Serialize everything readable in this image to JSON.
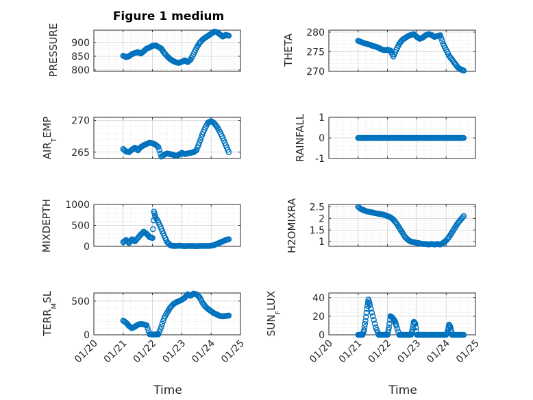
{
  "chart_data": [
    {
      "type": "scatter",
      "title": "Figure 1 medium",
      "ylabel": "PRESSURE",
      "ylim": [
        795,
        945
      ],
      "yticks": [
        800,
        850,
        900
      ],
      "ytick_labels": [
        "800",
        "850",
        "900"
      ],
      "xlim": [
        20,
        25
      ],
      "x": [
        21.0,
        21.1,
        21.2,
        21.3,
        21.4,
        21.5,
        21.6,
        21.7,
        21.8,
        21.9,
        22.0,
        22.1,
        22.2,
        22.3,
        22.4,
        22.5,
        22.6,
        22.7,
        22.8,
        22.9,
        23.0,
        23.1,
        23.2,
        23.3,
        23.4,
        23.5,
        23.6,
        23.7,
        23.8,
        23.9,
        24.0,
        24.1,
        24.2,
        24.3,
        24.4,
        24.5,
        24.6
      ],
      "y": [
        852,
        847,
        850,
        858,
        862,
        865,
        860,
        868,
        878,
        882,
        888,
        890,
        884,
        878,
        862,
        850,
        840,
        833,
        828,
        826,
        830,
        835,
        829,
        838,
        858,
        880,
        898,
        910,
        918,
        925,
        932,
        940,
        938,
        930,
        922,
        928,
        925
      ]
    },
    {
      "type": "scatter",
      "title": "",
      "ylabel": "THETA",
      "ylim": [
        270,
        280.5
      ],
      "yticks": [
        270,
        275,
        280
      ],
      "ytick_labels": [
        "270",
        "275",
        "280"
      ],
      "xlim": [
        20,
        25
      ],
      "x": [
        21.0,
        21.1,
        21.2,
        21.3,
        21.4,
        21.5,
        21.6,
        21.7,
        21.8,
        21.9,
        22.0,
        22.1,
        22.2,
        22.3,
        22.4,
        22.5,
        22.6,
        22.7,
        22.8,
        22.9,
        23.0,
        23.1,
        23.2,
        23.3,
        23.4,
        23.5,
        23.6,
        23.7,
        23.8,
        23.9,
        24.0,
        24.1,
        24.2,
        24.3,
        24.4,
        24.5,
        24.6
      ],
      "y": [
        277.8,
        277.5,
        277.2,
        277.0,
        276.8,
        276.5,
        276.3,
        276.0,
        275.6,
        275.4,
        275.5,
        275.3,
        273.8,
        275.5,
        277.0,
        278.0,
        278.5,
        279.0,
        279.3,
        279.5,
        278.8,
        278.3,
        278.6,
        279.2,
        279.5,
        279.3,
        278.8,
        279.0,
        279.2,
        277.0,
        275.5,
        274.0,
        273.0,
        272.0,
        271.0,
        270.5,
        270.2
      ]
    },
    {
      "type": "scatter",
      "title": "",
      "ylabel": "AIR_TEMP",
      "ylim": [
        264,
        270.5
      ],
      "yticks": [
        265,
        270
      ],
      "ytick_labels": [
        "265",
        "270"
      ],
      "xlim": [
        20,
        25
      ],
      "x": [
        21.0,
        21.1,
        21.2,
        21.3,
        21.4,
        21.5,
        21.6,
        21.7,
        21.8,
        21.9,
        22.0,
        22.1,
        22.2,
        22.3,
        22.4,
        22.5,
        22.6,
        22.7,
        22.8,
        22.9,
        23.0,
        23.1,
        23.2,
        23.3,
        23.4,
        23.5,
        23.6,
        23.7,
        23.8,
        23.9,
        24.0,
        24.1,
        24.2,
        24.3,
        24.4,
        24.5,
        24.6
      ],
      "y": [
        265.5,
        265.1,
        265.0,
        265.4,
        265.7,
        265.3,
        265.8,
        266.1,
        266.3,
        266.5,
        266.4,
        266.2,
        265.8,
        264.3,
        264.6,
        264.8,
        264.7,
        264.6,
        264.4,
        264.6,
        264.9,
        264.7,
        264.8,
        264.9,
        265.0,
        265.3,
        266.5,
        267.8,
        268.9,
        269.7,
        269.9,
        269.6,
        269.0,
        268.2,
        267.2,
        266.1,
        265.0
      ]
    },
    {
      "type": "scatter",
      "title": "",
      "ylabel": "RAINFALL",
      "ylim": [
        -1,
        1
      ],
      "yticks": [
        -1,
        0,
        1
      ],
      "ytick_labels": [
        "-1",
        "0",
        "1"
      ],
      "xlim": [
        20,
        25
      ],
      "x": [
        21.0,
        21.1,
        21.2,
        21.3,
        21.4,
        21.5,
        21.6,
        21.7,
        21.8,
        21.9,
        22.0,
        22.1,
        22.2,
        22.3,
        22.4,
        22.5,
        22.6,
        22.7,
        22.8,
        22.9,
        23.0,
        23.1,
        23.2,
        23.3,
        23.4,
        23.5,
        23.6,
        23.7,
        23.8,
        23.9,
        24.0,
        24.1,
        24.2,
        24.3,
        24.4,
        24.5,
        24.6
      ],
      "y": [
        0,
        0,
        0,
        0,
        0,
        0,
        0,
        0,
        0,
        0,
        0,
        0,
        0,
        0,
        0,
        0,
        0,
        0,
        0,
        0,
        0,
        0,
        0,
        0,
        0,
        0,
        0,
        0,
        0,
        0,
        0,
        0,
        0,
        0,
        0,
        0,
        0
      ]
    },
    {
      "type": "scatter",
      "title": "",
      "ylabel": "MIXDEPTH",
      "ylim": [
        0,
        1000
      ],
      "yticks": [
        0,
        500,
        1000
      ],
      "ytick_labels": [
        "0",
        "500",
        "1000"
      ],
      "xlim": [
        20,
        25
      ],
      "x": [
        21.0,
        21.1,
        21.2,
        21.3,
        21.4,
        21.5,
        21.6,
        21.7,
        21.8,
        21.9,
        22.0,
        22.05,
        22.1,
        22.2,
        22.3,
        22.4,
        22.5,
        22.6,
        22.7,
        22.8,
        22.9,
        23.0,
        23.1,
        23.2,
        23.3,
        23.4,
        23.5,
        23.6,
        23.7,
        23.8,
        23.9,
        24.0,
        24.1,
        24.2,
        24.3,
        24.4,
        24.5,
        24.6
      ],
      "y": [
        100,
        150,
        80,
        170,
        120,
        200,
        280,
        350,
        300,
        220,
        200,
        830,
        700,
        580,
        420,
        250,
        100,
        30,
        10,
        10,
        15,
        10,
        5,
        10,
        10,
        8,
        5,
        10,
        10,
        10,
        8,
        15,
        30,
        60,
        90,
        120,
        150,
        170
      ]
    },
    {
      "type": "scatter",
      "title": "",
      "ylabel": "H2OMIXRA",
      "ylim": [
        0.8,
        2.6
      ],
      "yticks": [
        1,
        1.5,
        2,
        2.5
      ],
      "ytick_labels": [
        "1",
        "1.5",
        "2",
        "2.5"
      ],
      "xlim": [
        20,
        25
      ],
      "x": [
        21.0,
        21.1,
        21.2,
        21.3,
        21.4,
        21.5,
        21.6,
        21.7,
        21.8,
        21.9,
        22.0,
        22.1,
        22.2,
        22.3,
        22.4,
        22.5,
        22.6,
        22.7,
        22.8,
        22.9,
        23.0,
        23.1,
        23.2,
        23.3,
        23.4,
        23.5,
        23.6,
        23.7,
        23.8,
        23.9,
        24.0,
        24.1,
        24.2,
        24.3,
        24.4,
        24.5,
        24.6
      ],
      "y": [
        2.5,
        2.4,
        2.35,
        2.3,
        2.28,
        2.25,
        2.22,
        2.2,
        2.18,
        2.15,
        2.1,
        2.05,
        1.95,
        1.8,
        1.6,
        1.4,
        1.2,
        1.08,
        1.0,
        0.98,
        0.95,
        0.93,
        0.9,
        0.9,
        0.88,
        0.9,
        0.88,
        0.9,
        0.88,
        0.95,
        1.05,
        1.2,
        1.4,
        1.6,
        1.8,
        1.95,
        2.1
      ]
    },
    {
      "type": "scatter",
      "title": "",
      "ylabel": "TERR_MSL",
      "ylim": [
        0,
        620
      ],
      "yticks": [
        0,
        500
      ],
      "ytick_labels": [
        "0",
        "500"
      ],
      "xlim": [
        20,
        25
      ],
      "x": [
        21.0,
        21.1,
        21.2,
        21.3,
        21.4,
        21.5,
        21.6,
        21.7,
        21.8,
        21.9,
        22.0,
        22.1,
        22.2,
        22.3,
        22.4,
        22.5,
        22.6,
        22.7,
        22.8,
        22.9,
        23.0,
        23.1,
        23.2,
        23.3,
        23.4,
        23.5,
        23.6,
        23.7,
        23.8,
        23.9,
        24.0,
        24.1,
        24.2,
        24.3,
        24.4,
        24.5,
        24.6
      ],
      "y": [
        210,
        180,
        130,
        100,
        120,
        150,
        160,
        155,
        140,
        10,
        5,
        5,
        8,
        120,
        250,
        330,
        400,
        450,
        480,
        500,
        520,
        550,
        600,
        580,
        610,
        600,
        560,
        480,
        420,
        380,
        350,
        320,
        300,
        280,
        275,
        280,
        285
      ]
    },
    {
      "type": "scatter",
      "title": "",
      "ylabel": "SUN_FLUX",
      "ylim": [
        0,
        45
      ],
      "yticks": [
        0,
        20,
        40
      ],
      "ytick_labels": [
        "0",
        "20",
        "40"
      ],
      "xlim": [
        20,
        25
      ],
      "x": [
        21.0,
        21.05,
        21.1,
        21.15,
        21.2,
        21.25,
        21.3,
        21.35,
        21.4,
        21.5,
        21.6,
        21.7,
        21.8,
        21.9,
        22.0,
        22.05,
        22.1,
        22.15,
        22.2,
        22.25,
        22.3,
        22.4,
        22.5,
        22.6,
        22.7,
        22.8,
        22.85,
        22.9,
        22.95,
        23.0,
        23.1,
        23.2,
        23.3,
        23.4,
        23.5,
        23.6,
        23.7,
        23.8,
        23.9,
        24.0,
        24.05,
        24.1,
        24.15,
        24.2,
        24.3,
        24.4,
        24.5,
        24.6
      ],
      "y": [
        0,
        0,
        0,
        0,
        5,
        15,
        28,
        38,
        32,
        20,
        8,
        0,
        0,
        0,
        0,
        8,
        20,
        19,
        17,
        15,
        10,
        0,
        0,
        0,
        0,
        0,
        5,
        14,
        12,
        0,
        0,
        0,
        0,
        0,
        0,
        0,
        0,
        0,
        0,
        0,
        3,
        11,
        8,
        0,
        0,
        0,
        0,
        0
      ]
    }
  ],
  "xtick_labels": [
    "01/20",
    "01/21",
    "01/22",
    "01/23",
    "01/24",
    "01/25"
  ],
  "xlabel": "Time",
  "panel_labels": {
    "p1": "PRESSURE",
    "p2": "THETA",
    "p3a": "AIR",
    "p3b": "T",
    "p3c": "EMP",
    "p4": "RAINFALL",
    "p5": "MIXDEPTH",
    "p6": "H2OMIXRA",
    "p7a": "TERR",
    "p7b": "M",
    "p7c": "SL",
    "p8a": "SUN",
    "p8b": "F",
    "p8c": "LUX"
  },
  "colors": {
    "marker": "#0072bd",
    "axis": "#262626",
    "grid": "#dedede"
  }
}
